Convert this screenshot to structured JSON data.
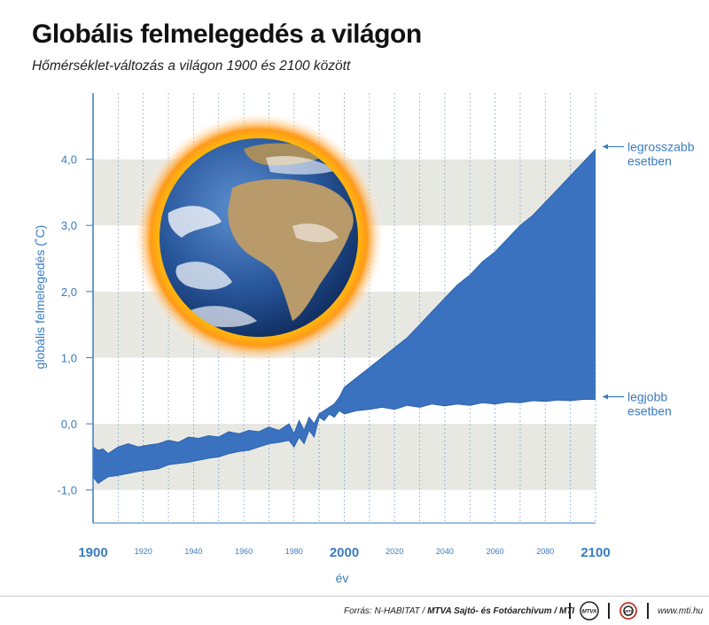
{
  "title": "Globális felmelegedés a világon",
  "subtitle": "Hőmérséklet-változás a világon 1900 és 2100 között",
  "chart_data": {
    "type": "area",
    "ylabel": "globális felmelegedés (˚C)",
    "xlabel": "év",
    "xlim": [
      1900,
      2100
    ],
    "ylim": [
      -1.5,
      5.0
    ],
    "y_ticks": [
      "-1,0",
      "0,0",
      "1,0",
      "2,0",
      "3,0",
      "4,0"
    ],
    "y_tick_values": [
      -1,
      0,
      1,
      2,
      3,
      4
    ],
    "x_ticks_major": [
      "1900",
      "2000",
      "2100"
    ],
    "x_ticks_minor": [
      "1920",
      "1940",
      "1960",
      "1980",
      "2020",
      "2040",
      "2060",
      "2080"
    ],
    "grid": "vertical dotted lines every 10 years, horizontal gray bands",
    "series": [
      {
        "name": "legrosszabb esetben",
        "x": [
          1900,
          1902,
          1904,
          1906,
          1910,
          1914,
          1918,
          1922,
          1926,
          1930,
          1934,
          1938,
          1942,
          1946,
          1950,
          1954,
          1958,
          1962,
          1966,
          1970,
          1974,
          1978,
          1980,
          1982,
          1984,
          1986,
          1988,
          1990,
          1992,
          1994,
          1996,
          1998,
          2000,
          2005,
          2010,
          2015,
          2020,
          2025,
          2030,
          2035,
          2040,
          2045,
          2050,
          2055,
          2060,
          2065,
          2070,
          2075,
          2080,
          2085,
          2090,
          2095,
          2100
        ],
        "values": [
          -0.35,
          -0.4,
          -0.38,
          -0.45,
          -0.35,
          -0.3,
          -0.35,
          -0.32,
          -0.3,
          -0.25,
          -0.28,
          -0.2,
          -0.22,
          -0.18,
          -0.2,
          -0.12,
          -0.15,
          -0.1,
          -0.12,
          -0.05,
          -0.1,
          0.0,
          -0.15,
          0.05,
          -0.1,
          0.1,
          0.0,
          0.15,
          0.2,
          0.25,
          0.3,
          0.4,
          0.55,
          0.7,
          0.85,
          1.0,
          1.15,
          1.3,
          1.5,
          1.7,
          1.9,
          2.1,
          2.25,
          2.45,
          2.6,
          2.8,
          3.0,
          3.15,
          3.35,
          3.55,
          3.75,
          3.95,
          4.15
        ]
      },
      {
        "name": "legjobb esetben",
        "x": [
          1900,
          1902,
          1904,
          1906,
          1910,
          1914,
          1918,
          1922,
          1926,
          1930,
          1934,
          1938,
          1942,
          1946,
          1950,
          1954,
          1958,
          1962,
          1966,
          1970,
          1974,
          1978,
          1980,
          1982,
          1984,
          1986,
          1988,
          1990,
          1992,
          1994,
          1996,
          1998,
          2000,
          2005,
          2010,
          2015,
          2020,
          2025,
          2030,
          2035,
          2040,
          2045,
          2050,
          2055,
          2060,
          2065,
          2070,
          2075,
          2080,
          2085,
          2090,
          2095,
          2100
        ],
        "values": [
          -0.8,
          -0.9,
          -0.85,
          -0.8,
          -0.78,
          -0.75,
          -0.72,
          -0.7,
          -0.68,
          -0.62,
          -0.6,
          -0.58,
          -0.55,
          -0.52,
          -0.5,
          -0.45,
          -0.42,
          -0.4,
          -0.35,
          -0.3,
          -0.28,
          -0.25,
          -0.35,
          -0.2,
          -0.3,
          -0.1,
          -0.2,
          0.1,
          0.05,
          0.15,
          0.1,
          0.2,
          0.15,
          0.2,
          0.22,
          0.25,
          0.22,
          0.28,
          0.25,
          0.3,
          0.27,
          0.3,
          0.28,
          0.32,
          0.3,
          0.33,
          0.32,
          0.35,
          0.34,
          0.36,
          0.35,
          0.37,
          0.37
        ]
      }
    ],
    "annotations": [
      {
        "lines": [
          "legrosszabb",
          "esetben"
        ],
        "series": "legrosszabb esetben"
      },
      {
        "lines": [
          "legjobb",
          "esetben"
        ],
        "series": "legjobb esetben"
      }
    ],
    "colors": {
      "area": "#3a72bf",
      "axis": "#3a7cc0",
      "band": "#e8e8e3"
    }
  },
  "footer": {
    "source_prefix": "Forrás: N-HABITAT / ",
    "source_bold": "MTVA Sajtó- és Fotóarchívum / MTI",
    "logo1": "MTVA",
    "logo2": "MTI",
    "url": "www.mti.hu"
  }
}
